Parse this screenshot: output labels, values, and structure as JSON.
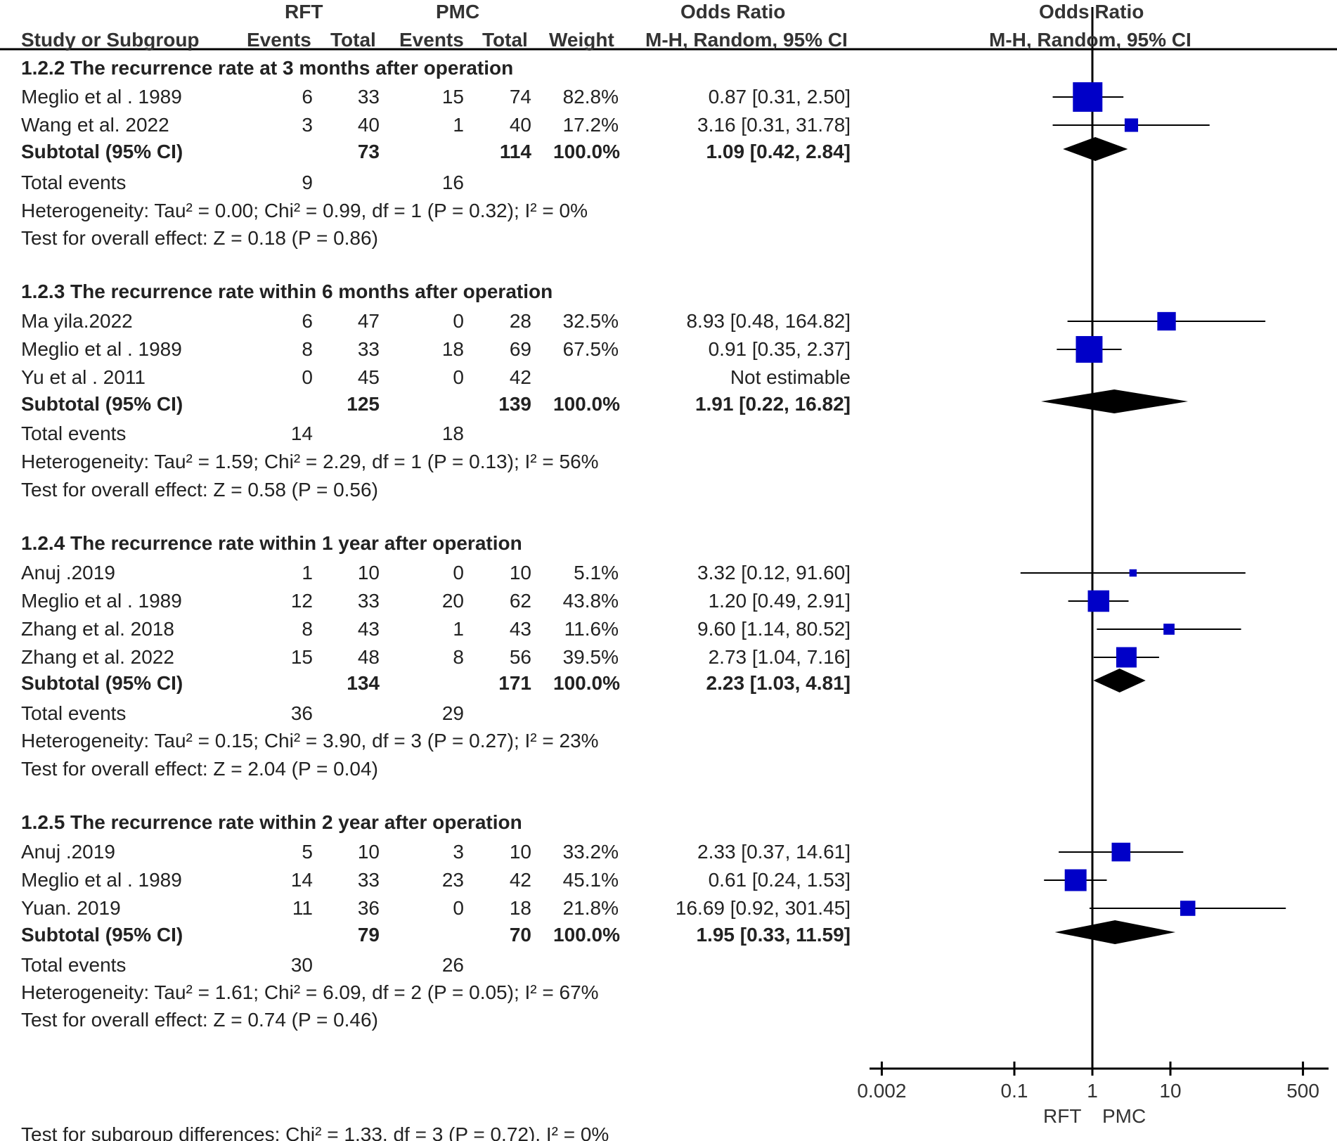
{
  "header": {
    "group_rft": "RFT",
    "group_pmc": "PMC",
    "or_table": "Odds Ratio",
    "or_plot": "Odds Ratio",
    "col_study": "Study or Subgroup",
    "col_rft_events": "Events",
    "col_rft_total": "Total",
    "col_pmc_events": "Events",
    "col_pmc_total": "Total",
    "col_weight": "Weight",
    "col_method": "M-H, Random, 95% CI",
    "plot_method": "M-H, Random, 95% CI"
  },
  "groups": [
    {
      "title": "1.2.2 The recurrence rate at 3 months after operation",
      "studies": [
        {
          "name": "Meglio et al . 1989",
          "e1": "6",
          "t1": "33",
          "e2": "15",
          "t2": "74",
          "weight": "82.8%",
          "ci": "0.87 [0.31, 2.50]"
        },
        {
          "name": "Wang et al. 2022",
          "e1": "3",
          "t1": "40",
          "e2": "1",
          "t2": "40",
          "weight": "17.2%",
          "ci": "3.16 [0.31, 31.78]"
        }
      ],
      "subtotal": {
        "label": "Subtotal (95% CI)",
        "t1": "73",
        "t2": "114",
        "weight": "100.0%",
        "ci": "1.09 [0.42, 2.84]"
      },
      "total_events": {
        "label": "Total events",
        "e1": "9",
        "e2": "16"
      },
      "heterogeneity": "Heterogeneity: Tau² = 0.00; Chi² = 0.99, df = 1 (P = 0.32); I² = 0%",
      "overall": "Test for overall effect: Z = 0.18 (P = 0.86)"
    },
    {
      "title": "1.2.3 The recurrence rate within 6 months after operation",
      "studies": [
        {
          "name": "Ma yila.2022",
          "e1": "6",
          "t1": "47",
          "e2": "0",
          "t2": "28",
          "weight": "32.5%",
          "ci": "8.93 [0.48, 164.82]"
        },
        {
          "name": "Meglio et al . 1989",
          "e1": "8",
          "t1": "33",
          "e2": "18",
          "t2": "69",
          "weight": "67.5%",
          "ci": "0.91 [0.35, 2.37]"
        },
        {
          "name": "Yu et al . 2011",
          "e1": "0",
          "t1": "45",
          "e2": "0",
          "t2": "42",
          "weight": "",
          "ci": "Not estimable"
        }
      ],
      "subtotal": {
        "label": "Subtotal (95% CI)",
        "t1": "125",
        "t2": "139",
        "weight": "100.0%",
        "ci": "1.91 [0.22, 16.82]"
      },
      "total_events": {
        "label": "Total events",
        "e1": "14",
        "e2": "18"
      },
      "heterogeneity": "Heterogeneity: Tau² = 1.59; Chi² = 2.29, df = 1 (P = 0.13); I² = 56%",
      "overall": "Test for overall effect: Z = 0.58 (P = 0.56)"
    },
    {
      "title": "1.2.4 The recurrence rate within 1 year after operation",
      "studies": [
        {
          "name": "Anuj .2019",
          "e1": "1",
          "t1": "10",
          "e2": "0",
          "t2": "10",
          "weight": "5.1%",
          "ci": "3.32 [0.12, 91.60]"
        },
        {
          "name": "Meglio et al . 1989",
          "e1": "12",
          "t1": "33",
          "e2": "20",
          "t2": "62",
          "weight": "43.8%",
          "ci": "1.20 [0.49, 2.91]"
        },
        {
          "name": "Zhang et al. 2018",
          "e1": "8",
          "t1": "43",
          "e2": "1",
          "t2": "43",
          "weight": "11.6%",
          "ci": "9.60 [1.14, 80.52]"
        },
        {
          "name": "Zhang et al. 2022",
          "e1": "15",
          "t1": "48",
          "e2": "8",
          "t2": "56",
          "weight": "39.5%",
          "ci": "2.73 [1.04, 7.16]"
        }
      ],
      "subtotal": {
        "label": "Subtotal (95% CI)",
        "t1": "134",
        "t2": "171",
        "weight": "100.0%",
        "ci": "2.23 [1.03, 4.81]"
      },
      "total_events": {
        "label": "Total events",
        "e1": "36",
        "e2": "29"
      },
      "heterogeneity": "Heterogeneity: Tau² = 0.15; Chi² = 3.90, df = 3 (P = 0.27); I² = 23%",
      "overall": "Test for overall effect: Z = 2.04 (P = 0.04)"
    },
    {
      "title": "1.2.5 The recurrence rate within 2 year after operation",
      "studies": [
        {
          "name": "Anuj .2019",
          "e1": "5",
          "t1": "10",
          "e2": "3",
          "t2": "10",
          "weight": "33.2%",
          "ci": "2.33 [0.37, 14.61]"
        },
        {
          "name": "Meglio et al . 1989",
          "e1": "14",
          "t1": "33",
          "e2": "23",
          "t2": "42",
          "weight": "45.1%",
          "ci": "0.61 [0.24, 1.53]"
        },
        {
          "name": "Yuan. 2019",
          "e1": "11",
          "t1": "36",
          "e2": "0",
          "t2": "18",
          "weight": "21.8%",
          "ci": "16.69 [0.92, 301.45]"
        }
      ],
      "subtotal": {
        "label": "Subtotal (95% CI)",
        "t1": "79",
        "t2": "70",
        "weight": "100.0%",
        "ci": "1.95 [0.33, 11.59]"
      },
      "total_events": {
        "label": "Total events",
        "e1": "30",
        "e2": "26"
      },
      "heterogeneity": "Heterogeneity: Tau² = 1.61; Chi² = 6.09, df = 2 (P = 0.05); I² = 67%",
      "overall": "Test for overall effect: Z = 0.74 (P = 0.46)"
    }
  ],
  "footer": {
    "subgroup_test": "Test for subgroup differences: Chi² = 1.33, df = 3 (P = 0.72), I² = 0%"
  },
  "colors": {
    "study_marker": "#0000c8",
    "diamond": "#000000",
    "line": "#000000",
    "text": "#222222",
    "axis_label": "#333333"
  },
  "chart_data": {
    "type": "forest",
    "title": "Odds Ratio",
    "method": "M-H, Random, 95% CI",
    "scale": "log",
    "xlim": [
      0.002,
      500
    ],
    "xticks": [
      0.002,
      0.1,
      1,
      10,
      500
    ],
    "xtick_labels": [
      "0.002",
      "0.1",
      "1",
      "10",
      "500"
    ],
    "null_value": 1,
    "favours_left": "RFT",
    "favours_right": "PMC",
    "series": [
      {
        "group": "1.2.2",
        "studies": [
          {
            "name": "Meglio et al . 1989",
            "or": 0.87,
            "lo": 0.31,
            "hi": 2.5,
            "weight": 82.8
          },
          {
            "name": "Wang et al. 2022",
            "or": 3.16,
            "lo": 0.31,
            "hi": 31.78,
            "weight": 17.2
          }
        ],
        "pooled": {
          "or": 1.09,
          "lo": 0.42,
          "hi": 2.84
        }
      },
      {
        "group": "1.2.3",
        "studies": [
          {
            "name": "Ma yila.2022",
            "or": 8.93,
            "lo": 0.48,
            "hi": 164.82,
            "weight": 32.5
          },
          {
            "name": "Meglio et al . 1989",
            "or": 0.91,
            "lo": 0.35,
            "hi": 2.37,
            "weight": 67.5
          },
          {
            "name": "Yu et al . 2011",
            "or": null,
            "lo": null,
            "hi": null,
            "weight": null
          }
        ],
        "pooled": {
          "or": 1.91,
          "lo": 0.22,
          "hi": 16.82
        }
      },
      {
        "group": "1.2.4",
        "studies": [
          {
            "name": "Anuj .2019",
            "or": 3.32,
            "lo": 0.12,
            "hi": 91.6,
            "weight": 5.1
          },
          {
            "name": "Meglio et al . 1989",
            "or": 1.2,
            "lo": 0.49,
            "hi": 2.91,
            "weight": 43.8
          },
          {
            "name": "Zhang et al. 2018",
            "or": 9.6,
            "lo": 1.14,
            "hi": 80.52,
            "weight": 11.6
          },
          {
            "name": "Zhang et al. 2022",
            "or": 2.73,
            "lo": 1.04,
            "hi": 7.16,
            "weight": 39.5
          }
        ],
        "pooled": {
          "or": 2.23,
          "lo": 1.03,
          "hi": 4.81
        }
      },
      {
        "group": "1.2.5",
        "studies": [
          {
            "name": "Anuj .2019",
            "or": 2.33,
            "lo": 0.37,
            "hi": 14.61,
            "weight": 33.2
          },
          {
            "name": "Meglio et al . 1989",
            "or": 0.61,
            "lo": 0.24,
            "hi": 1.53,
            "weight": 45.1
          },
          {
            "name": "Yuan. 2019",
            "or": 16.69,
            "lo": 0.92,
            "hi": 301.45,
            "weight": 21.8
          }
        ],
        "pooled": {
          "or": 1.95,
          "lo": 0.33,
          "hi": 11.59
        }
      }
    ]
  }
}
